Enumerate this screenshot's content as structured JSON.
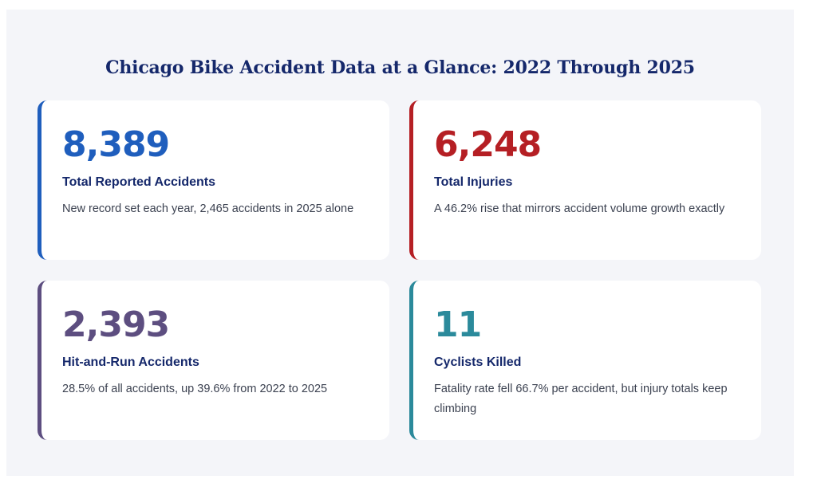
{
  "title": "Chicago Bike Accident Data at a Glance: 2022 Through 2025",
  "colors": {
    "panel_background": "#f4f5f9",
    "title": "#15286b",
    "label": "#15286b",
    "body_text": "#3b4150"
  },
  "stats": [
    {
      "value": "8,389",
      "label": "Total Reported Accidents",
      "description": "New record set each year, 2,465 accidents in 2025 alone",
      "accent": "#1f5ebd"
    },
    {
      "value": "6,248",
      "label": "Total Injuries",
      "description": "A 46.2% rise that mirrors accident volume growth exactly",
      "accent": "#b51f24"
    },
    {
      "value": "2,393",
      "label": "Hit-and-Run Accidents",
      "description": "28.5% of all accidents, up 39.6% from 2022 to 2025",
      "accent": "#5d4e80"
    },
    {
      "value": "11",
      "label": "Cyclists Killed",
      "description": "Fatality rate fell 66.7% per accident, but injury totals keep climbing",
      "accent": "#2b8a9b"
    }
  ]
}
